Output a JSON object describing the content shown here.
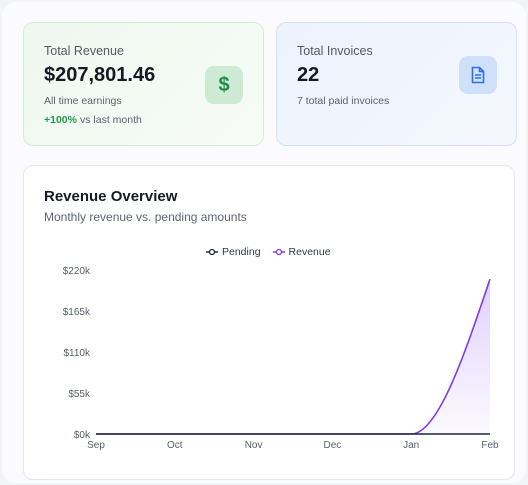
{
  "revenue_card": {
    "title": "Total Revenue",
    "value": "$207,801.46",
    "subtitle": "All time earnings",
    "change_pct": "+100%",
    "change_text": "vs last month",
    "icon": "dollar-icon"
  },
  "invoices_card": {
    "title": "Total Invoices",
    "value": "22",
    "subtitle": "7 total paid invoices",
    "icon": "document-icon"
  },
  "overview": {
    "title": "Revenue Overview",
    "subtitle": "Monthly revenue vs. pending amounts"
  },
  "chart_data": {
    "type": "area",
    "categories": [
      "Sep",
      "Oct",
      "Nov",
      "Dec",
      "Jan",
      "Feb"
    ],
    "y_ticks": [
      "$0k",
      "$55k",
      "$110k",
      "$165k",
      "$220k"
    ],
    "ylim": [
      0,
      220000
    ],
    "legend_position": "top-center",
    "grid": false,
    "series": [
      {
        "name": "Pending",
        "color": "#1e293b",
        "values": [
          0,
          0,
          0,
          0,
          0,
          0
        ]
      },
      {
        "name": "Revenue",
        "color": "#7c3aed",
        "values": [
          0,
          0,
          0,
          0,
          0,
          207801.46
        ]
      }
    ]
  }
}
